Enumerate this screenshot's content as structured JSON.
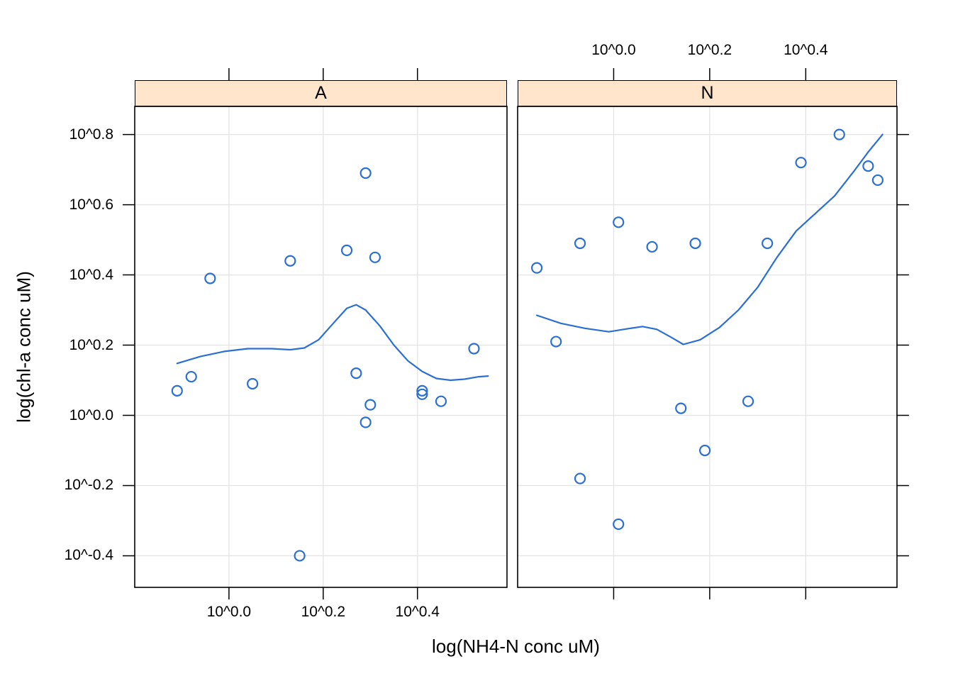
{
  "figure": {
    "background": "#ffffff"
  },
  "chart_data": {
    "type": "scatter",
    "title": "",
    "xlabel": "log(NH4-N conc uM)",
    "ylabel": "log(chl-a conc uM)",
    "xlim": [
      -0.2,
      0.59
    ],
    "ylim": [
      -0.49,
      0.88
    ],
    "grid": true,
    "legend": "none",
    "x_ticks": {
      "values": [
        0.0,
        0.2,
        0.4
      ],
      "labels": [
        "10^0.0",
        "10^0.2",
        "10^0.4"
      ]
    },
    "y_ticks": {
      "values": [
        0.8,
        0.6,
        0.4,
        0.2,
        0.0,
        -0.2,
        -0.4
      ],
      "labels": [
        "10^0.8",
        "10^0.6",
        "10^0.4",
        "10^0.2",
        "10^0.0",
        "10^-0.2",
        "10^-0.4"
      ]
    },
    "panels": [
      {
        "label": "A",
        "points": [
          [
            -0.11,
            0.07
          ],
          [
            -0.08,
            0.11
          ],
          [
            -0.04,
            0.39
          ],
          [
            0.05,
            0.09
          ],
          [
            0.13,
            0.44
          ],
          [
            0.15,
            -0.4
          ],
          [
            0.25,
            0.47
          ],
          [
            0.27,
            0.12
          ],
          [
            0.29,
            0.69
          ],
          [
            0.29,
            -0.02
          ],
          [
            0.3,
            0.03
          ],
          [
            0.31,
            0.45
          ],
          [
            0.41,
            0.07
          ],
          [
            0.41,
            0.06
          ],
          [
            0.45,
            0.04
          ],
          [
            0.52,
            0.19
          ]
        ],
        "smooth": [
          [
            -0.11,
            0.148
          ],
          [
            -0.06,
            0.168
          ],
          [
            -0.01,
            0.182
          ],
          [
            0.04,
            0.19
          ],
          [
            0.09,
            0.19
          ],
          [
            0.13,
            0.187
          ],
          [
            0.16,
            0.192
          ],
          [
            0.19,
            0.215
          ],
          [
            0.22,
            0.26
          ],
          [
            0.25,
            0.305
          ],
          [
            0.27,
            0.315
          ],
          [
            0.29,
            0.3
          ],
          [
            0.32,
            0.255
          ],
          [
            0.35,
            0.2
          ],
          [
            0.38,
            0.155
          ],
          [
            0.41,
            0.125
          ],
          [
            0.44,
            0.105
          ],
          [
            0.47,
            0.1
          ],
          [
            0.5,
            0.103
          ],
          [
            0.53,
            0.11
          ],
          [
            0.55,
            0.112
          ]
        ]
      },
      {
        "label": "N",
        "points": [
          [
            -0.16,
            0.42
          ],
          [
            -0.12,
            0.21
          ],
          [
            -0.07,
            0.49
          ],
          [
            -0.07,
            -0.18
          ],
          [
            0.01,
            0.55
          ],
          [
            0.01,
            -0.31
          ],
          [
            0.08,
            0.48
          ],
          [
            0.14,
            0.02
          ],
          [
            0.17,
            0.49
          ],
          [
            0.19,
            -0.1
          ],
          [
            0.28,
            0.04
          ],
          [
            0.32,
            0.49
          ],
          [
            0.39,
            0.72
          ],
          [
            0.47,
            0.8
          ],
          [
            0.53,
            0.71
          ],
          [
            0.55,
            0.67
          ]
        ],
        "smooth": [
          [
            -0.16,
            0.285
          ],
          [
            -0.11,
            0.262
          ],
          [
            -0.06,
            0.248
          ],
          [
            -0.01,
            0.238
          ],
          [
            0.03,
            0.247
          ],
          [
            0.06,
            0.253
          ],
          [
            0.09,
            0.245
          ],
          [
            0.12,
            0.222
          ],
          [
            0.145,
            0.202
          ],
          [
            0.18,
            0.215
          ],
          [
            0.22,
            0.25
          ],
          [
            0.26,
            0.3
          ],
          [
            0.3,
            0.365
          ],
          [
            0.34,
            0.45
          ],
          [
            0.38,
            0.525
          ],
          [
            0.42,
            0.575
          ],
          [
            0.46,
            0.625
          ],
          [
            0.5,
            0.695
          ],
          [
            0.53,
            0.75
          ],
          [
            0.56,
            0.8
          ]
        ]
      }
    ],
    "colors": {
      "symbol": "#2c6fd2",
      "smooth": "#2c6fd2",
      "strip_fill": "#ffe5cc",
      "grid": "#e4e4e4",
      "frame": "#000000"
    }
  }
}
